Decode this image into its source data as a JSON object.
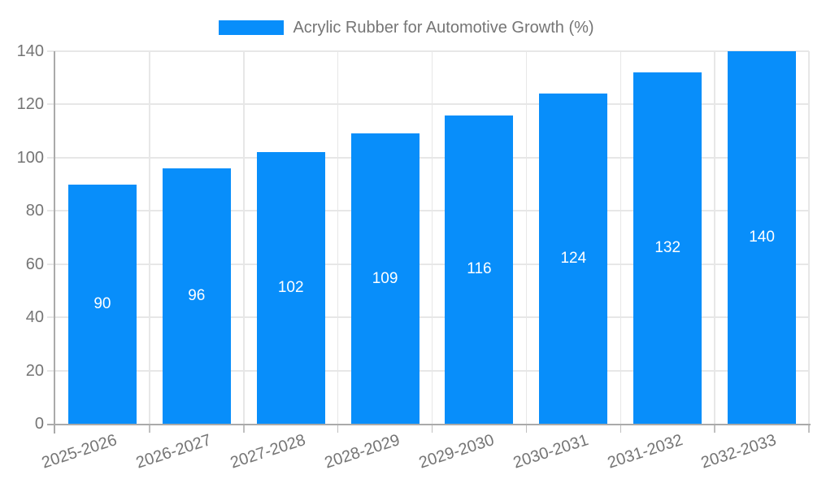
{
  "legend": {
    "label": "Acrylic Rubber for Automotive Growth (%)"
  },
  "chart_data": {
    "type": "bar",
    "title": "Acrylic Rubber for Automotive Growth (%)",
    "categories": [
      "2025-2026",
      "2026-2027",
      "2027-2028",
      "2028-2029",
      "2029-2030",
      "2030-2031",
      "2031-2032",
      "2032-2033"
    ],
    "values": [
      90,
      96,
      102,
      109,
      116,
      124,
      132,
      140
    ],
    "xlabel": "",
    "ylabel": "",
    "ylim": [
      0,
      140
    ],
    "yticks": [
      0,
      20,
      40,
      60,
      80,
      100,
      120,
      140
    ],
    "grid": true,
    "legend_position": "top",
    "value_labels": "inside-center"
  },
  "colors": {
    "bar": "#088efa",
    "bar_label": "#ffffff",
    "axis_text": "#757575",
    "grid_line": "#e7e7e7",
    "axis_line": "#aaaaaa",
    "tick": "#c0c0c0",
    "background": "#ffffff"
  }
}
